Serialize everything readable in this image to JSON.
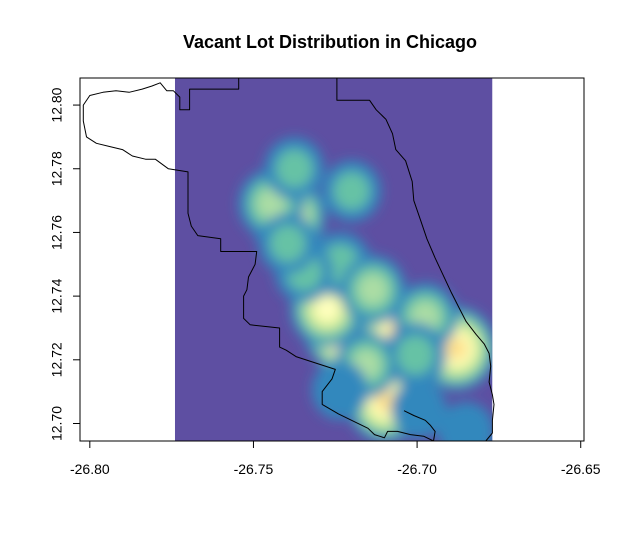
{
  "chart_data": {
    "type": "heatmap",
    "title": "Vacant Lot Distribution in Chicago",
    "xlabel": "",
    "ylabel": "",
    "xlim": [
      -26.803,
      -26.649
    ],
    "ylim": [
      12.6945,
      12.8085
    ],
    "x_ticks": [
      -26.8,
      -26.75,
      -26.7,
      -26.65
    ],
    "x_tick_labels": [
      "-26.80",
      "-26.75",
      "-26.70",
      "-26.65"
    ],
    "y_ticks": [
      12.7,
      12.72,
      12.74,
      12.76,
      12.78,
      12.8
    ],
    "y_tick_labels": [
      "12.70",
      "12.72",
      "12.74",
      "12.76",
      "12.78",
      "12.80"
    ],
    "raster_extent": {
      "x": [
        -26.774,
        -26.677
      ],
      "y": [
        12.6945,
        12.8085
      ]
    },
    "background_color": "#5e4fa2",
    "color_scale": [
      "#5e4fa2",
      "#3288bd",
      "#66c2a5",
      "#abdda4",
      "#e6f598",
      "#ffffbf",
      "#fee08b",
      "#fdae61",
      "#f46d43",
      "#d53e4f",
      "#9e0142"
    ],
    "density_peaks": [
      {
        "x": -26.7195,
        "y": 12.7315,
        "intensity": 1.0
      },
      {
        "x": -26.706,
        "y": 12.729,
        "intensity": 0.55
      },
      {
        "x": -26.7275,
        "y": 12.736,
        "intensity": 0.45
      },
      {
        "x": -26.688,
        "y": 12.7235,
        "intensity": 0.58
      },
      {
        "x": -26.7095,
        "y": 12.707,
        "intensity": 0.56
      },
      {
        "x": -26.7395,
        "y": 12.765,
        "intensity": 0.5
      },
      {
        "x": -26.7445,
        "y": 12.769,
        "intensity": 0.3
      },
      {
        "x": -26.7375,
        "y": 12.78,
        "intensity": 0.18
      },
      {
        "x": -26.72,
        "y": 12.773,
        "intensity": 0.16
      },
      {
        "x": -26.7235,
        "y": 12.75,
        "intensity": 0.22
      },
      {
        "x": -26.7135,
        "y": 12.742,
        "intensity": 0.3
      },
      {
        "x": -26.6975,
        "y": 12.7335,
        "intensity": 0.28
      },
      {
        "x": -26.7005,
        "y": 12.7215,
        "intensity": 0.22
      },
      {
        "x": -26.7155,
        "y": 12.7185,
        "intensity": 0.25
      },
      {
        "x": -26.7235,
        "y": 12.7105,
        "intensity": 0.12
      },
      {
        "x": -26.6995,
        "y": 12.7045,
        "intensity": 0.1
      },
      {
        "x": -26.7345,
        "y": 12.7475,
        "intensity": 0.15
      },
      {
        "x": -26.7395,
        "y": 12.7565,
        "intensity": 0.15
      },
      {
        "x": -26.685,
        "y": 12.6975,
        "intensity": 0.12
      }
    ],
    "city_outline": [
      [
        -26.7785,
        12.807
      ],
      [
        -26.7765,
        12.8045
      ],
      [
        -26.7745,
        12.8045
      ],
      [
        -26.7725,
        12.8025
      ],
      [
        -26.7725,
        12.7985
      ],
      [
        -26.7695,
        12.7985
      ],
      [
        -26.7695,
        12.805
      ],
      [
        -26.7545,
        12.805
      ],
      [
        -26.7545,
        12.8085
      ],
      [
        -26.7245,
        12.8085
      ],
      [
        -26.7245,
        12.8015
      ],
      [
        -26.7145,
        12.8015
      ],
      [
        -26.7125,
        12.7985
      ],
      [
        -26.7095,
        12.7955
      ],
      [
        -26.7075,
        12.791
      ],
      [
        -26.7065,
        12.786
      ],
      [
        -26.7035,
        12.7825
      ],
      [
        -26.7015,
        12.776
      ],
      [
        -26.701,
        12.77
      ],
      [
        -26.699,
        12.764
      ],
      [
        -26.697,
        12.758
      ],
      [
        -26.6945,
        12.752
      ],
      [
        -26.692,
        12.7465
      ],
      [
        -26.6895,
        12.741
      ],
      [
        -26.687,
        12.736
      ],
      [
        -26.685,
        12.732
      ],
      [
        -26.682,
        12.728
      ],
      [
        -26.6795,
        12.725
      ],
      [
        -26.678,
        12.722
      ],
      [
        -26.6775,
        12.718
      ],
      [
        -26.678,
        12.713
      ],
      [
        -26.677,
        12.709
      ],
      [
        -26.6765,
        12.706
      ],
      [
        -26.677,
        12.701
      ],
      [
        -26.677,
        12.697
      ],
      [
        -26.679,
        12.6945
      ],
      [
        -26.695,
        12.6945
      ],
      [
        -26.698,
        12.696
      ],
      [
        -26.702,
        12.6965
      ],
      [
        -26.706,
        12.6975
      ],
      [
        -26.709,
        12.6975
      ],
      [
        -26.71,
        12.6955
      ],
      [
        -26.713,
        12.6965
      ],
      [
        -26.715,
        12.6985
      ],
      [
        -26.719,
        12.7005
      ],
      [
        -26.724,
        12.703
      ],
      [
        -26.729,
        12.706
      ],
      [
        -26.729,
        12.71
      ],
      [
        -26.726,
        12.714
      ],
      [
        -26.725,
        12.717
      ],
      [
        -26.731,
        12.719
      ],
      [
        -26.737,
        12.721
      ],
      [
        -26.74,
        12.723
      ],
      [
        -26.742,
        12.724
      ],
      [
        -26.742,
        12.73
      ],
      [
        -26.751,
        12.731
      ],
      [
        -26.753,
        12.733
      ],
      [
        -26.753,
        12.74
      ],
      [
        -26.752,
        12.742
      ],
      [
        -26.7515,
        12.746
      ],
      [
        -26.7495,
        12.75
      ],
      [
        -26.749,
        12.754
      ],
      [
        -26.76,
        12.754
      ],
      [
        -26.76,
        12.758
      ],
      [
        -26.767,
        12.759
      ],
      [
        -26.769,
        12.762
      ],
      [
        -26.77,
        12.766
      ],
      [
        -26.77,
        12.771
      ],
      [
        -26.77,
        12.775
      ],
      [
        -26.77,
        12.779
      ],
      [
        -26.776,
        12.78
      ],
      [
        -26.78,
        12.783
      ],
      [
        -26.783,
        12.783
      ],
      [
        -26.787,
        12.784
      ],
      [
        -26.79,
        12.786
      ],
      [
        -26.794,
        12.787
      ],
      [
        -26.798,
        12.788
      ],
      [
        -26.801,
        12.79
      ],
      [
        -26.802,
        12.795
      ],
      [
        -26.802,
        12.8
      ],
      [
        -26.8,
        12.803
      ],
      [
        -26.796,
        12.804
      ],
      [
        -26.792,
        12.8045
      ],
      [
        -26.788,
        12.804
      ],
      [
        -26.784,
        12.805
      ],
      [
        -26.781,
        12.806
      ],
      [
        -26.7785,
        12.807
      ]
    ],
    "shore_jaggy": [
      [
        -26.695,
        12.6945
      ],
      [
        -26.6945,
        12.6975
      ],
      [
        -26.696,
        12.6995
      ],
      [
        -26.6975,
        12.701
      ],
      [
        -26.701,
        12.7025
      ],
      [
        -26.704,
        12.704
      ]
    ]
  }
}
